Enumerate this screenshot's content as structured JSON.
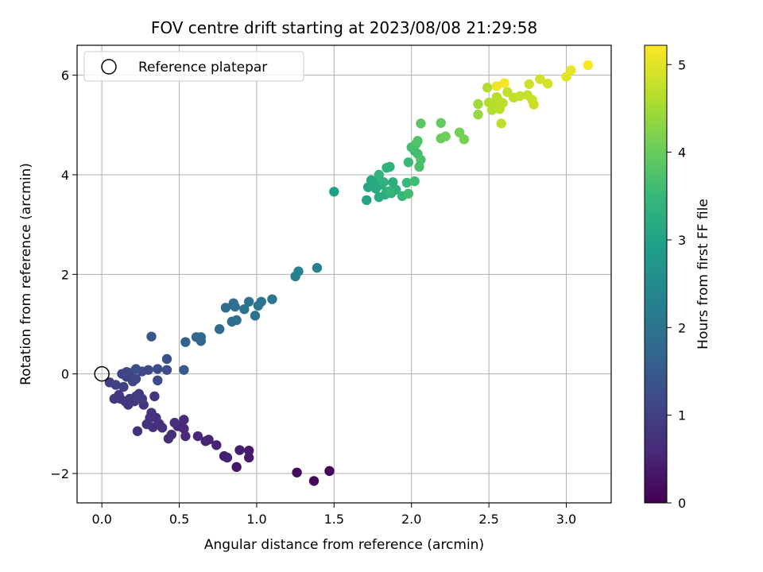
{
  "chart_data": {
    "type": "scatter",
    "title": "FOV centre drift starting at 2023/08/08 21:29:58",
    "xlabel": "Angular distance from reference (arcmin)",
    "ylabel": "Rotation from reference (arcmin)",
    "xlim": [
      -0.16,
      3.29
    ],
    "ylim": [
      -2.59,
      6.6
    ],
    "xticks": [
      0.0,
      0.5,
      1.0,
      1.5,
      2.0,
      2.5,
      3.0
    ],
    "xtick_labels": [
      "0.0",
      "0.5",
      "1.0",
      "1.5",
      "2.0",
      "2.5",
      "3.0"
    ],
    "yticks": [
      -2,
      0,
      2,
      4,
      6
    ],
    "ytick_labels": [
      "−2",
      "0",
      "2",
      "4",
      "6"
    ],
    "grid": true,
    "legend": {
      "placement": "upper-left",
      "entries": [
        "Reference platepar"
      ]
    },
    "reference_point": {
      "x": 0.0,
      "y": 0.0
    },
    "colorbar": {
      "label": "Hours from first FF file",
      "min": 0,
      "max": 5.22,
      "ticks": [
        0,
        1,
        2,
        3,
        4,
        5
      ],
      "tick_labels": [
        "0",
        "1",
        "2",
        "3",
        "4",
        "5"
      ],
      "colormap": "viridis",
      "colormap_stops": [
        "#440154",
        "#482878",
        "#3e4989",
        "#31688e",
        "#26828e",
        "#1f9e89",
        "#35b779",
        "#6ece58",
        "#b5de2b",
        "#fde725"
      ]
    },
    "series": [
      {
        "points": [
          [
            1.47,
            -1.95,
            0.05
          ],
          [
            1.37,
            -2.15,
            0.1
          ],
          [
            1.26,
            -1.98,
            0.15
          ],
          [
            0.87,
            -1.87,
            0.3
          ],
          [
            0.95,
            -1.54,
            0.35
          ],
          [
            0.95,
            -1.68,
            0.38
          ],
          [
            0.89,
            -1.53,
            0.42
          ],
          [
            0.79,
            -1.65,
            0.45
          ],
          [
            0.81,
            -1.68,
            0.48
          ],
          [
            0.74,
            -1.43,
            0.5
          ],
          [
            0.69,
            -1.32,
            0.52
          ],
          [
            0.67,
            -1.35,
            0.55
          ],
          [
            0.62,
            -1.25,
            0.58
          ],
          [
            0.54,
            -1.25,
            0.6
          ],
          [
            0.53,
            -1.1,
            0.62
          ],
          [
            0.49,
            -1.05,
            0.63
          ],
          [
            0.53,
            -0.92,
            0.65
          ],
          [
            0.45,
            -1.22,
            0.66
          ],
          [
            0.43,
            -1.3,
            0.68
          ],
          [
            0.47,
            -0.98,
            0.7
          ],
          [
            0.39,
            -1.08,
            0.71
          ],
          [
            0.37,
            -1.0,
            0.72
          ],
          [
            0.35,
            -0.88,
            0.73
          ],
          [
            0.33,
            -1.07,
            0.74
          ],
          [
            0.29,
            -1.01,
            0.75
          ],
          [
            0.23,
            -1.15,
            0.76
          ],
          [
            0.32,
            -0.78,
            0.77
          ],
          [
            0.31,
            -0.88,
            0.78
          ],
          [
            0.34,
            -0.45,
            0.8
          ],
          [
            0.27,
            -0.62,
            0.81
          ],
          [
            0.24,
            -0.4,
            0.82
          ],
          [
            0.21,
            -0.55,
            0.83
          ],
          [
            0.17,
            -0.62,
            0.84
          ],
          [
            0.15,
            -0.55,
            0.85
          ],
          [
            0.12,
            -0.5,
            0.86
          ],
          [
            0.08,
            -0.5,
            0.87
          ],
          [
            0.11,
            -0.42,
            0.88
          ],
          [
            0.18,
            -0.5,
            0.9
          ],
          [
            0.26,
            -0.5,
            0.92
          ],
          [
            0.22,
            -0.45,
            0.93
          ],
          [
            0.05,
            -0.17,
            0.95
          ],
          [
            0.09,
            -0.22,
            0.98
          ],
          [
            0.14,
            -0.26,
            1.0
          ],
          [
            0.16,
            -0.06,
            1.02
          ],
          [
            0.13,
            0.0,
            1.05
          ],
          [
            0.18,
            0.02,
            1.08
          ],
          [
            0.2,
            -0.15,
            1.1
          ],
          [
            0.16,
            0.04,
            1.12
          ],
          [
            0.22,
            -0.1,
            1.14
          ],
          [
            0.26,
            0.05,
            1.16
          ],
          [
            0.3,
            0.08,
            1.18
          ],
          [
            0.36,
            0.1,
            1.2
          ],
          [
            0.42,
            0.08,
            1.22
          ],
          [
            0.36,
            -0.13,
            1.24
          ],
          [
            0.42,
            0.3,
            1.28
          ],
          [
            0.32,
            0.75,
            1.4
          ],
          [
            0.22,
            0.1,
            1.3
          ],
          [
            0.53,
            0.08,
            1.5
          ],
          [
            0.54,
            0.64,
            1.6
          ],
          [
            0.61,
            0.74,
            1.7
          ],
          [
            0.64,
            0.66,
            1.72
          ],
          [
            0.64,
            0.74,
            1.74
          ],
          [
            0.76,
            0.9,
            1.8
          ],
          [
            0.84,
            1.05,
            1.85
          ],
          [
            0.87,
            1.08,
            1.88
          ],
          [
            0.8,
            1.33,
            1.9
          ],
          [
            0.85,
            1.42,
            1.92
          ],
          [
            0.86,
            1.35,
            1.94
          ],
          [
            0.92,
            1.3,
            1.96
          ],
          [
            0.95,
            1.45,
            1.98
          ],
          [
            0.99,
            1.17,
            2.0
          ],
          [
            1.01,
            1.37,
            2.02
          ],
          [
            1.03,
            1.45,
            2.04
          ],
          [
            1.1,
            1.5,
            2.06
          ],
          [
            1.25,
            1.96,
            2.3
          ],
          [
            1.27,
            2.06,
            2.32
          ],
          [
            1.39,
            2.13,
            2.35
          ],
          [
            1.5,
            3.66,
            2.95
          ],
          [
            1.71,
            3.49,
            3.05
          ],
          [
            1.72,
            3.75,
            3.1
          ],
          [
            1.74,
            3.89,
            3.12
          ],
          [
            1.76,
            3.85,
            3.14
          ],
          [
            1.77,
            3.72,
            3.16
          ],
          [
            1.79,
            3.55,
            3.18
          ],
          [
            1.8,
            3.8,
            3.2
          ],
          [
            1.83,
            3.6,
            3.22
          ],
          [
            1.84,
            3.66,
            3.24
          ],
          [
            1.87,
            3.63,
            3.26
          ],
          [
            1.88,
            3.85,
            3.28
          ],
          [
            1.9,
            3.7,
            3.3
          ],
          [
            1.82,
            3.85,
            3.32
          ],
          [
            1.84,
            4.14,
            3.34
          ],
          [
            1.86,
            4.16,
            3.36
          ],
          [
            1.79,
            4.0,
            3.4
          ],
          [
            1.86,
            3.67,
            3.42
          ],
          [
            1.94,
            3.57,
            3.48
          ],
          [
            1.97,
            3.84,
            3.5
          ],
          [
            1.98,
            4.25,
            3.55
          ],
          [
            2.02,
            3.87,
            3.58
          ],
          [
            1.98,
            3.62,
            3.6
          ],
          [
            2.0,
            4.55,
            3.62
          ],
          [
            2.02,
            4.48,
            3.64
          ],
          [
            2.04,
            4.42,
            3.66
          ],
          [
            2.05,
            4.16,
            3.68
          ],
          [
            2.06,
            4.3,
            3.7
          ],
          [
            2.03,
            4.62,
            3.72
          ],
          [
            2.04,
            4.68,
            3.75
          ],
          [
            2.06,
            5.03,
            3.85
          ],
          [
            2.19,
            5.04,
            3.95
          ],
          [
            2.19,
            4.73,
            4.0
          ],
          [
            2.22,
            4.77,
            4.05
          ],
          [
            2.31,
            4.85,
            4.1
          ],
          [
            2.34,
            4.71,
            4.12
          ],
          [
            2.43,
            5.21,
            4.4
          ],
          [
            2.43,
            5.42,
            4.45
          ],
          [
            2.49,
            5.75,
            4.6
          ],
          [
            2.5,
            5.45,
            4.62
          ],
          [
            2.52,
            5.3,
            4.63
          ],
          [
            2.54,
            5.38,
            4.64
          ],
          [
            2.55,
            5.56,
            4.65
          ],
          [
            2.56,
            5.5,
            4.66
          ],
          [
            2.59,
            5.44,
            4.67
          ],
          [
            2.57,
            5.32,
            4.68
          ],
          [
            2.58,
            5.03,
            4.69
          ],
          [
            2.62,
            5.66,
            4.72
          ],
          [
            2.66,
            5.55,
            4.74
          ],
          [
            2.7,
            5.58,
            4.76
          ],
          [
            2.75,
            5.6,
            4.78
          ],
          [
            2.78,
            5.5,
            4.8
          ],
          [
            2.79,
            5.41,
            4.82
          ],
          [
            2.76,
            5.82,
            4.84
          ],
          [
            2.83,
            5.92,
            4.88
          ],
          [
            2.88,
            5.83,
            4.9
          ],
          [
            3.0,
            5.97,
            5.0
          ],
          [
            3.03,
            6.1,
            5.05
          ],
          [
            3.14,
            6.2,
            5.2
          ],
          [
            2.55,
            5.78,
            5.1
          ],
          [
            2.6,
            5.84,
            5.15
          ]
        ]
      }
    ]
  }
}
